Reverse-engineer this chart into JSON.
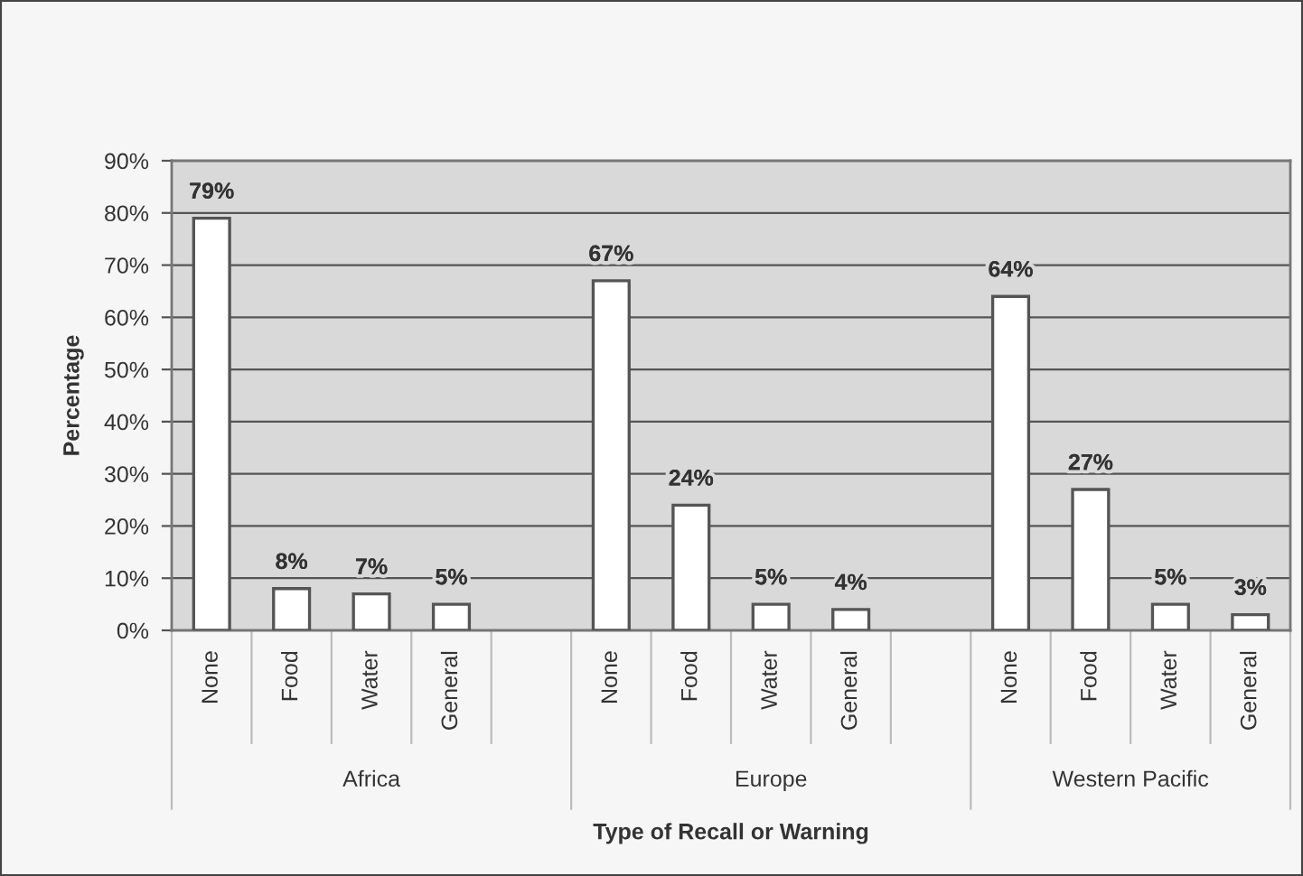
{
  "chart_data": {
    "type": "bar",
    "xlabel": "Type of Recall or Warning",
    "ylabel": "Percentage",
    "categories": [
      "None",
      "Food",
      "Water",
      "General",
      null,
      "None",
      "Food",
      "Water",
      "General",
      null,
      "None",
      "Food",
      "Water",
      "General"
    ],
    "values": [
      79,
      8,
      7,
      5,
      null,
      67,
      24,
      5,
      4,
      null,
      64,
      27,
      5,
      3
    ],
    "value_labels": [
      "79%",
      "8%",
      "7%",
      "5%",
      null,
      "67%",
      "24%",
      "5%",
      "4%",
      null,
      "64%",
      "27%",
      "5%",
      "3%"
    ],
    "color": "#ffffff",
    "ylim": [
      0,
      90
    ],
    "yticks": [
      {
        "value": 0,
        "label": "0%"
      },
      {
        "value": 10,
        "label": "10%"
      },
      {
        "value": 20,
        "label": "20%"
      },
      {
        "value": 30,
        "label": "30%"
      },
      {
        "value": 40,
        "label": "40%"
      },
      {
        "value": 50,
        "label": "50%"
      },
      {
        "value": 60,
        "label": "60%"
      },
      {
        "value": 70,
        "label": "70%"
      },
      {
        "value": 80,
        "label": "80%"
      },
      {
        "value": 90,
        "label": "90%"
      }
    ],
    "grid": "y",
    "annotations": [
      "Africa",
      "Europe",
      "Western Pacific"
    ]
  }
}
